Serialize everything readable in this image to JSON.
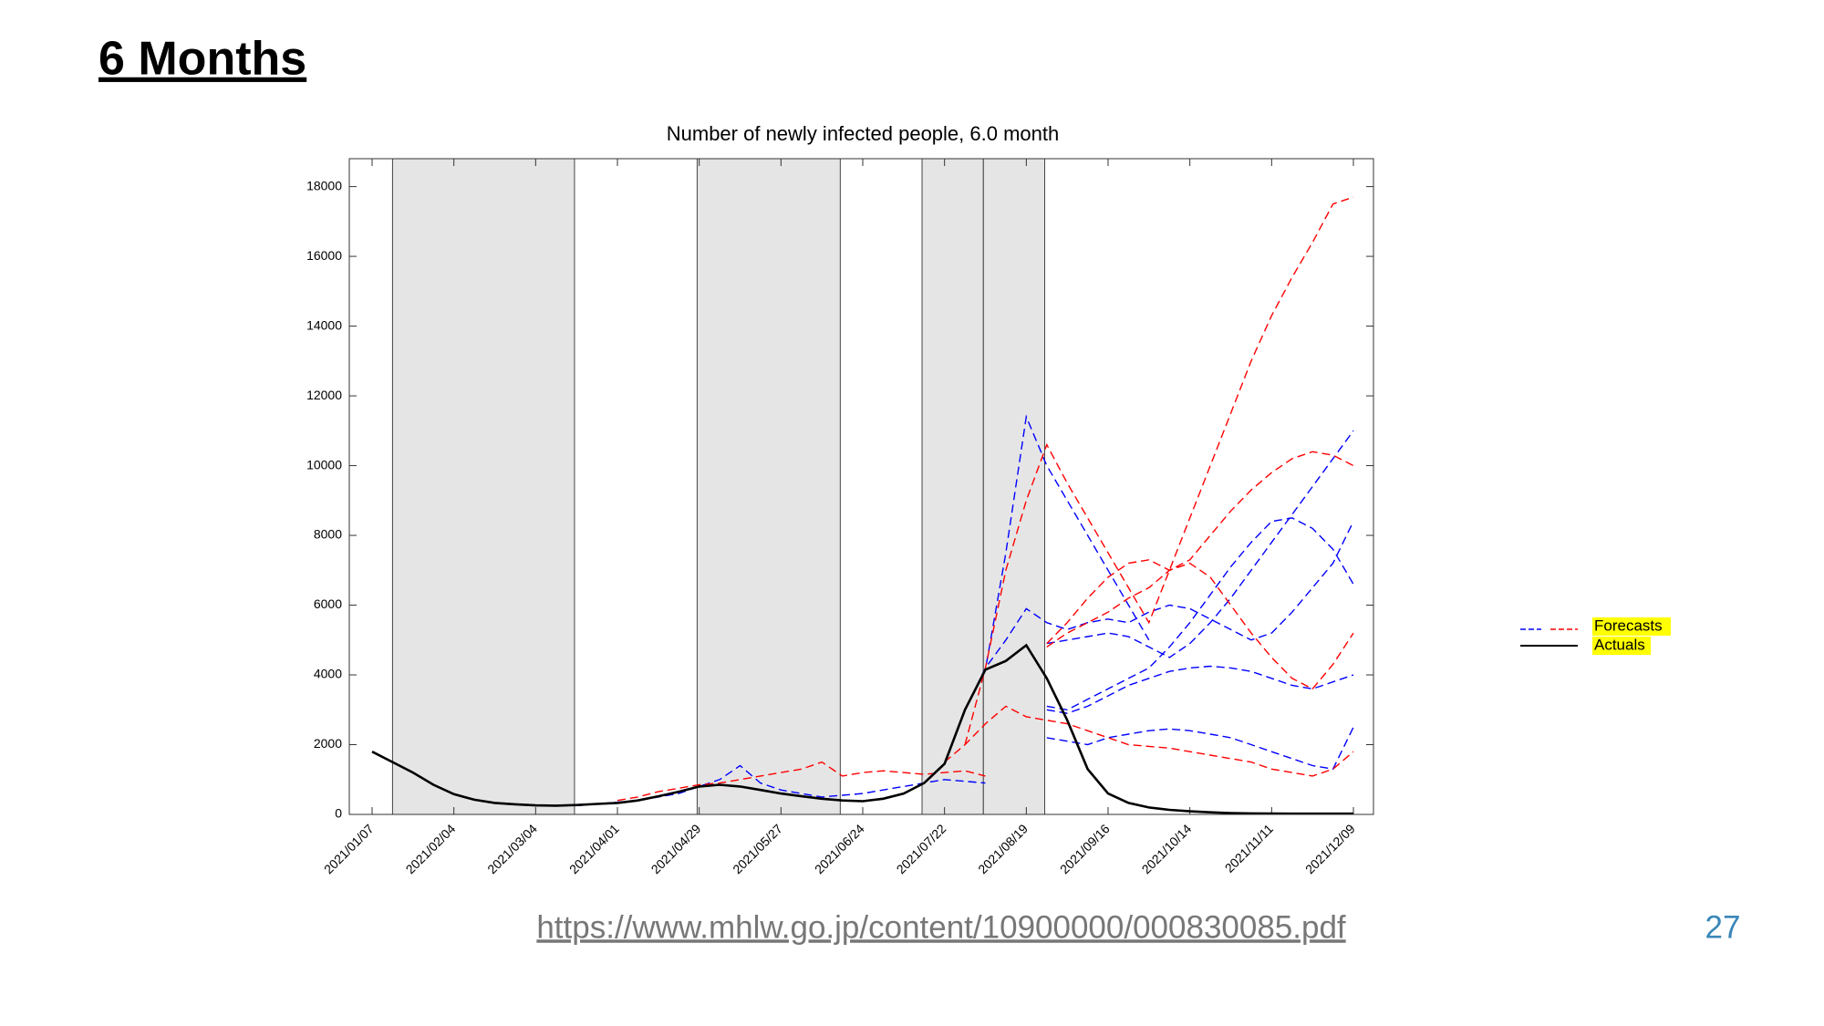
{
  "slide_title": "6 Months",
  "source_link": "https://www.mhlw.go.jp/content/10900000/000830085.pdf",
  "page_number": "27",
  "chart_data": {
    "type": "line",
    "title": "Number of newly infected people, 6.0 month",
    "categories": [
      "2021/01/07",
      null,
      null,
      null,
      "2021/02/04",
      null,
      null,
      null,
      "2021/03/04",
      null,
      null,
      null,
      "2021/04/01",
      null,
      null,
      null,
      "2021/04/29",
      null,
      null,
      null,
      "2021/05/27",
      null,
      null,
      null,
      "2021/06/24",
      null,
      null,
      null,
      "2021/07/22",
      null,
      null,
      null,
      "2021/08/19",
      null,
      null,
      null,
      "2021/09/16",
      null,
      null,
      null,
      "2021/10/14",
      null,
      null,
      null,
      "2021/11/11",
      null,
      null,
      null,
      "2021/12/09"
    ],
    "ylim": [
      0,
      18800
    ],
    "yticks": [
      0,
      2000,
      4000,
      6000,
      8000,
      10000,
      12000,
      14000,
      16000,
      18000
    ],
    "grid": false,
    "shaded_periods": [
      [
        1,
        9.9
      ],
      [
        15.9,
        22.9
      ],
      [
        26.9,
        29.9
      ],
      [
        29.9,
        32.9
      ]
    ],
    "shade_color": "#e5e5e5",
    "forecast_legend": "Forecasts",
    "legend_highlight": "#ffff00",
    "series": [
      {
        "name": "Actuals",
        "color": "#000000",
        "style": "solid",
        "values": [
          1800,
          1500,
          1200,
          850,
          580,
          420,
          330,
          290,
          260,
          250,
          270,
          300,
          330,
          400,
          520,
          650,
          800,
          850,
          800,
          700,
          600,
          520,
          450,
          400,
          380,
          450,
          600,
          900,
          1450,
          3000,
          4150,
          4400,
          4850,
          3900,
          2700,
          1300,
          600,
          330,
          200,
          130,
          90,
          60,
          40,
          30,
          25,
          20,
          20,
          20,
          20
        ]
      },
      {
        "color": "#0000ff",
        "style": "dashed",
        "values": [
          null,
          null,
          null,
          null,
          null,
          null,
          null,
          null,
          null,
          null,
          null,
          null,
          null,
          null,
          null,
          null,
          null,
          null,
          null,
          null,
          null,
          null,
          null,
          null,
          null,
          null,
          null,
          null,
          null,
          3000,
          4150,
          7500,
          11400,
          10000,
          9000,
          8000,
          7000,
          6000,
          5000,
          null,
          null,
          null,
          null,
          null,
          null,
          null,
          null,
          null,
          null
        ]
      },
      {
        "color": "#0000ff",
        "style": "dashed",
        "values": [
          null,
          null,
          null,
          null,
          null,
          null,
          null,
          null,
          null,
          null,
          null,
          null,
          null,
          null,
          null,
          null,
          null,
          null,
          null,
          null,
          null,
          null,
          null,
          null,
          null,
          null,
          null,
          null,
          null,
          3000,
          4200,
          5000,
          5900,
          5500,
          5300,
          5500,
          5600,
          5500,
          5800,
          6000,
          5900,
          5600,
          5300,
          5000,
          5200,
          5800,
          6500,
          7200,
          8400
        ]
      },
      {
        "color": "#0000ff",
        "style": "dashed",
        "values": [
          null,
          null,
          null,
          null,
          null,
          null,
          null,
          null,
          null,
          null,
          null,
          null,
          null,
          null,
          null,
          null,
          null,
          null,
          null,
          null,
          null,
          null,
          null,
          null,
          null,
          null,
          null,
          null,
          null,
          null,
          null,
          null,
          null,
          4900,
          5000,
          5100,
          5200,
          5100,
          4800,
          4500,
          4900,
          5500,
          6200,
          7000,
          7800,
          8600,
          9400,
          10200,
          11000
        ]
      },
      {
        "color": "#0000ff",
        "style": "dashed",
        "values": [
          null,
          null,
          null,
          null,
          null,
          null,
          null,
          null,
          null,
          null,
          null,
          null,
          null,
          null,
          null,
          null,
          null,
          null,
          null,
          null,
          null,
          null,
          null,
          null,
          null,
          null,
          null,
          null,
          null,
          null,
          null,
          null,
          null,
          3100,
          3000,
          3300,
          3600,
          3900,
          4200,
          4800,
          5500,
          6300,
          7100,
          7800,
          8400,
          8500,
          8200,
          7600,
          6600
        ]
      },
      {
        "color": "#0000ff",
        "style": "dashed",
        "values": [
          null,
          null,
          null,
          null,
          null,
          null,
          null,
          null,
          null,
          null,
          null,
          null,
          null,
          null,
          null,
          null,
          null,
          null,
          null,
          null,
          null,
          null,
          null,
          null,
          null,
          null,
          null,
          null,
          null,
          null,
          null,
          null,
          null,
          3000,
          2900,
          3100,
          3400,
          3700,
          3900,
          4100,
          4200,
          4250,
          4200,
          4100,
          3900,
          3700,
          3600,
          3800,
          4000
        ]
      },
      {
        "color": "#0000ff",
        "style": "dashed",
        "values": [
          null,
          null,
          null,
          null,
          null,
          null,
          null,
          null,
          null,
          null,
          null,
          null,
          null,
          null,
          null,
          null,
          null,
          null,
          null,
          null,
          null,
          null,
          null,
          null,
          null,
          null,
          null,
          null,
          null,
          null,
          null,
          null,
          null,
          2200,
          2100,
          2000,
          2200,
          2300,
          2400,
          2450,
          2400,
          2300,
          2200,
          2000,
          1800,
          1600,
          1400,
          1300,
          2500
        ]
      },
      {
        "color": "#0000ff",
        "style": "dashed",
        "values": [
          null,
          null,
          null,
          null,
          null,
          null,
          null,
          null,
          null,
          null,
          250,
          300,
          350,
          400,
          500,
          600,
          800,
          1000,
          1400,
          900,
          700,
          600,
          500,
          550,
          600,
          700,
          800,
          900,
          1000,
          950,
          900,
          null,
          null,
          null,
          null,
          null,
          null,
          null,
          null,
          null,
          null,
          null,
          null,
          null,
          null,
          null,
          null,
          null,
          null
        ]
      },
      {
        "color": "#ff0000",
        "style": "dashed",
        "values": [
          null,
          null,
          null,
          null,
          null,
          null,
          null,
          null,
          null,
          null,
          null,
          null,
          null,
          null,
          null,
          null,
          null,
          null,
          null,
          null,
          null,
          null,
          null,
          null,
          null,
          null,
          null,
          null,
          null,
          2000,
          4200,
          7000,
          9000,
          10600,
          9500,
          8500,
          7500,
          6500,
          5500,
          7000,
          8500,
          10000,
          11500,
          13000,
          14300,
          15400,
          16400,
          17500,
          17700
        ]
      },
      {
        "color": "#ff0000",
        "style": "dashed",
        "values": [
          null,
          null,
          null,
          null,
          null,
          null,
          null,
          null,
          null,
          null,
          null,
          null,
          null,
          null,
          null,
          null,
          null,
          null,
          null,
          null,
          null,
          null,
          null,
          null,
          null,
          null,
          null,
          null,
          null,
          null,
          null,
          null,
          null,
          4900,
          5500,
          6200,
          6800,
          7200,
          7300,
          7000,
          7300,
          8000,
          8700,
          9300,
          9800,
          10200,
          10400,
          10300,
          10000
        ]
      },
      {
        "color": "#ff0000",
        "style": "dashed",
        "values": [
          null,
          null,
          null,
          null,
          null,
          null,
          null,
          null,
          null,
          null,
          null,
          null,
          null,
          null,
          null,
          null,
          null,
          null,
          null,
          null,
          null,
          null,
          null,
          null,
          null,
          null,
          null,
          null,
          null,
          null,
          null,
          null,
          null,
          4800,
          5200,
          5500,
          5800,
          6200,
          6500,
          7000,
          7200,
          6800,
          6000,
          5200,
          4500,
          3900,
          3600,
          4300,
          5200
        ]
      },
      {
        "color": "#ff0000",
        "style": "dashed",
        "values": [
          null,
          null,
          null,
          null,
          null,
          null,
          null,
          null,
          null,
          null,
          null,
          null,
          null,
          null,
          null,
          null,
          null,
          null,
          null,
          null,
          null,
          null,
          null,
          null,
          null,
          null,
          null,
          null,
          1500,
          2000,
          2600,
          3100,
          2800,
          2700,
          2600,
          2400,
          2200,
          2000,
          1950,
          1900,
          1800,
          1700,
          1600,
          1500,
          1300,
          1200,
          1100,
          1300,
          1800
        ]
      },
      {
        "color": "#ff0000",
        "style": "dashed",
        "values": [
          null,
          null,
          null,
          null,
          null,
          null,
          null,
          null,
          null,
          null,
          null,
          null,
          400,
          500,
          650,
          750,
          850,
          900,
          1000,
          1100,
          1200,
          1300,
          1500,
          1100,
          1200,
          1250,
          1200,
          1150,
          1200,
          1250,
          1100,
          null,
          null,
          null,
          null,
          null,
          null,
          null,
          null,
          null,
          null,
          null,
          null,
          null,
          null,
          null,
          null,
          null,
          null
        ]
      }
    ]
  }
}
